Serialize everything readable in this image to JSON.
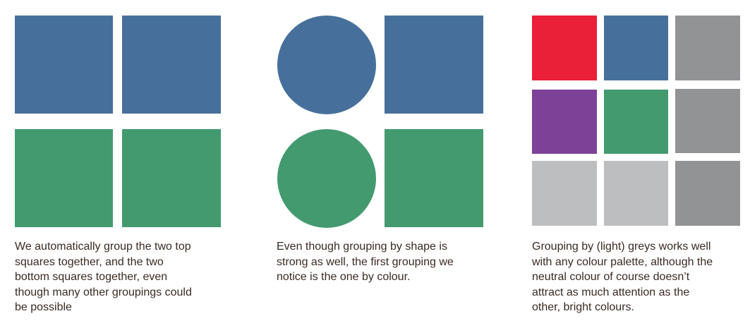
{
  "colors": {
    "blue": "#46709b",
    "green": "#439a6f",
    "red": "#ea2038",
    "purple": "#7b4298",
    "grey": "#929395",
    "light_grey": "#bdbec0"
  },
  "panels": [
    {
      "caption": "We automatically group the two top\nsquares together, and the two\nbottom squares together, even\nthough many other groupings could\nbe possible",
      "shapes": [
        "blue-square",
        "blue-square",
        "green-square",
        "green-square"
      ]
    },
    {
      "caption": "Even though grouping by shape is\nstrong as well, the first grouping we\nnotice is the one by colour.",
      "shapes": [
        "blue-circle",
        "blue-square",
        "green-circle",
        "green-square"
      ]
    },
    {
      "caption": "Grouping by (light) greys works well\nwith any colour palette, although the\nneutral colour of course doesn’t\nattract as much attention as the\nother, bright colours.",
      "shapes": [
        "red-square",
        "blue-square",
        "grey-square",
        "purple-square",
        "green-square",
        "grey-square",
        "light-grey-square",
        "light-grey-square",
        "grey-square"
      ]
    }
  ]
}
